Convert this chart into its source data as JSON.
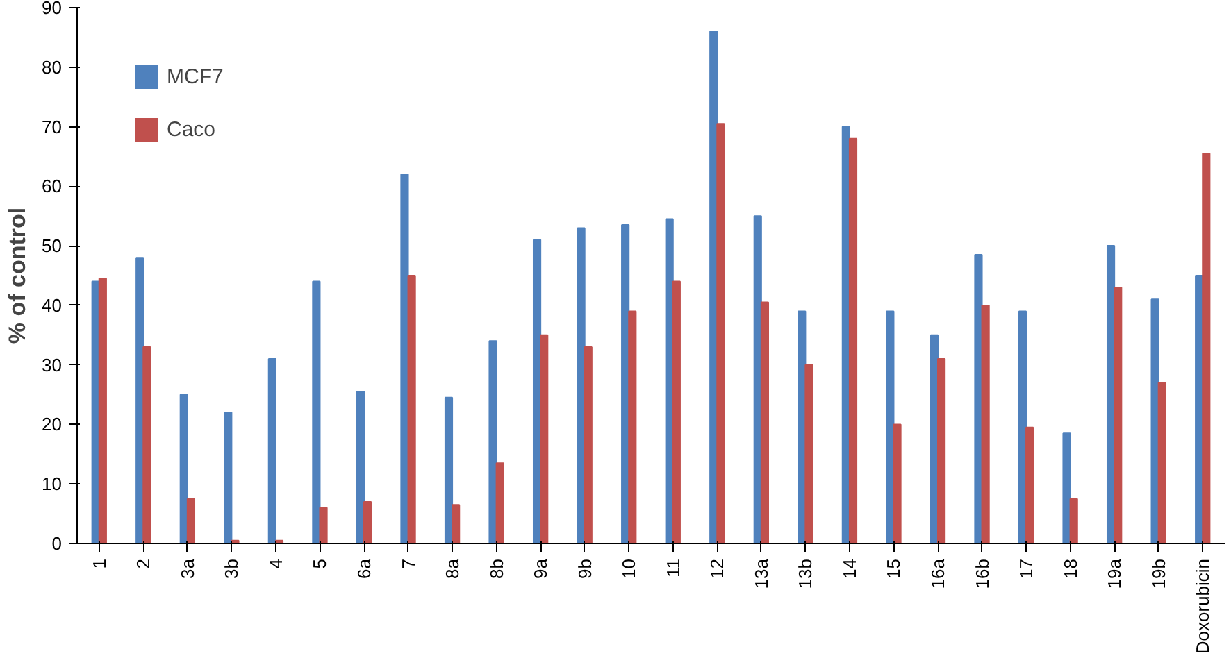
{
  "chart_data": {
    "type": "bar",
    "ylabel": "% of control",
    "categories": [
      "1",
      "2",
      "3a",
      "3b",
      "4",
      "5",
      "6a",
      "7",
      "8a",
      "8b",
      "9a",
      "9b",
      "10",
      "11",
      "12",
      "13a",
      "13b",
      "14",
      "15",
      "16a",
      "16b",
      "17",
      "18",
      "19a",
      "19b",
      "Doxorubicin"
    ],
    "series": [
      {
        "name": "MCF7",
        "color": "#4f81bd",
        "values": [
          44,
          48,
          25,
          22,
          31,
          44,
          25.5,
          62,
          24.5,
          34,
          51,
          53,
          53.5,
          54.5,
          86,
          55,
          39,
          70,
          39,
          35,
          48.5,
          39,
          18.5,
          50,
          41,
          45
        ]
      },
      {
        "name": "Caco",
        "color": "#c0504d",
        "values": [
          44.5,
          33,
          7.5,
          0.5,
          0.5,
          6,
          7,
          45,
          6.5,
          13.5,
          35,
          33,
          39,
          44,
          70.5,
          40.5,
          30,
          68,
          20,
          31,
          40,
          19.5,
          7.5,
          43,
          27,
          65.5
        ]
      }
    ],
    "ylim": [
      0,
      90
    ],
    "yticks": [
      0,
      10,
      20,
      30,
      40,
      50,
      60,
      70,
      80,
      90
    ],
    "grid": false,
    "legend": "top left"
  }
}
